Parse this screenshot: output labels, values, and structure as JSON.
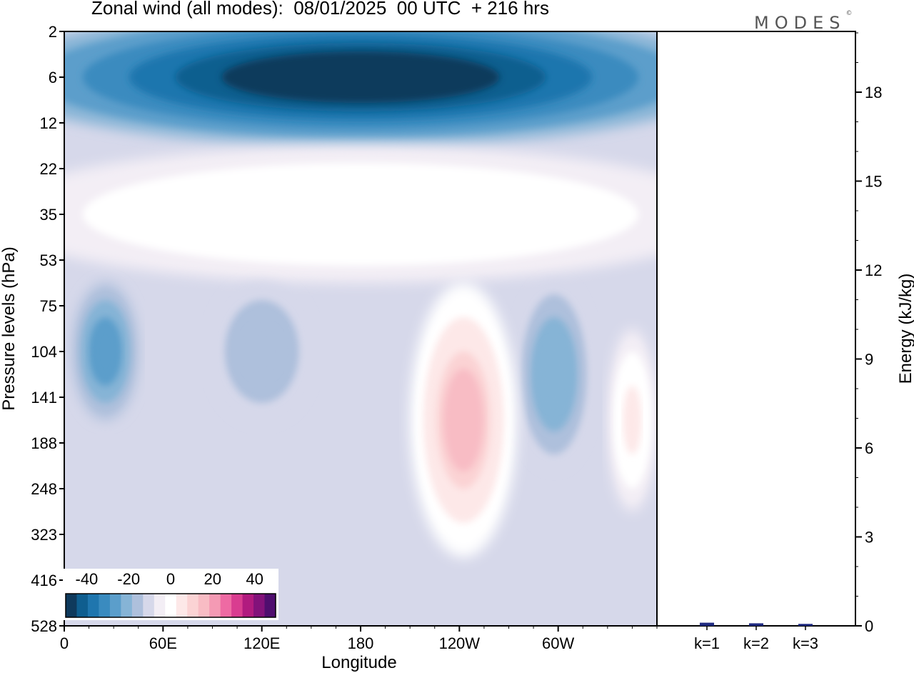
{
  "title": "Zonal wind (all modes):  08/01/2025  00 UTC  + 216 hrs",
  "brand": {
    "text": "MODES",
    "mark": "©"
  },
  "chart_data": [
    {
      "type": "heatmap",
      "title": "Zonal wind (all modes):  08/01/2025  00 UTC  + 216 hrs",
      "xlabel": "Longitude",
      "ylabel": "Pressure levels (hPa)",
      "x_ticks": [
        "0",
        "60E",
        "120E",
        "180",
        "120W",
        "60W"
      ],
      "x_tick_degrees": [
        0,
        60,
        120,
        180,
        240,
        300
      ],
      "xlim": [
        0,
        360
      ],
      "y_ticks": [
        "2",
        "6",
        "12",
        "22",
        "35",
        "53",
        "75",
        "104",
        "141",
        "188",
        "248",
        "323",
        "416",
        "528"
      ],
      "colorbar": {
        "ticks": [
          "-40",
          "-20",
          "0",
          "20",
          "40"
        ],
        "min": -50,
        "max": 50,
        "step": 6.25,
        "colors": [
          "#0f3a5c",
          "#0f5e8f",
          "#1f76ae",
          "#3a8bbf",
          "#5b9ecb",
          "#86b4d6",
          "#aec0dc",
          "#d6d8ea",
          "#f3eef5",
          "#ffffff",
          "#fde8e8",
          "#fbd3d4",
          "#f8bcc4",
          "#f49ab4",
          "#ee6aa3",
          "#d93d90",
          "#b11b7f",
          "#83127a",
          "#4f0e6e"
        ]
      },
      "regions": [
        {
          "name": "stratospheric easterly jet",
          "sign": "negative",
          "lon": [
            0,
            360
          ],
          "levels": [
            "2",
            "12"
          ],
          "peak": -45
        },
        {
          "name": "upper positive band",
          "sign": "positive",
          "lon": [
            0,
            360
          ],
          "levels": [
            "22",
            "53"
          ],
          "peak": 12
        },
        {
          "name": "negative cell 20E",
          "sign": "negative",
          "lon": [
            5,
            45
          ],
          "levels": [
            "75",
            "141"
          ],
          "peak": -25
        },
        {
          "name": "negative cell 110E",
          "sign": "negative",
          "lon": [
            90,
            150
          ],
          "levels": [
            "75",
            "141"
          ],
          "peak": -12
        },
        {
          "name": "negative cell 60W",
          "sign": "negative",
          "lon": [
            275,
            320
          ],
          "levels": [
            "75",
            "188"
          ],
          "peak": -18
        },
        {
          "name": "positive jet 110W",
          "sign": "positive",
          "lon": [
            210,
            275
          ],
          "levels": [
            "75",
            "323"
          ],
          "peak": 25
        },
        {
          "name": "positive cell 15W",
          "sign": "positive",
          "lon": [
            330,
            360
          ],
          "levels": [
            "104",
            "248"
          ],
          "peak": 14
        }
      ]
    },
    {
      "type": "bar",
      "ylabel": "Energy (kJ/kg)",
      "categories": [
        "k=1",
        "k=2",
        "k=3"
      ],
      "values": [
        0.07,
        0.05,
        0.03
      ],
      "ylim": [
        0,
        20
      ],
      "y_ticks": [
        "0",
        "3",
        "6",
        "9",
        "12",
        "15",
        "18"
      ],
      "color": "#1f2a80"
    }
  ]
}
